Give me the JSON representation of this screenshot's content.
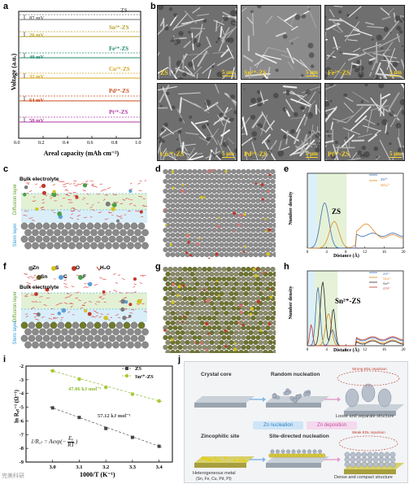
{
  "panel_labels": [
    "a",
    "b",
    "c",
    "d",
    "e",
    "f",
    "g",
    "h",
    "i",
    "j"
  ],
  "panel_a": {
    "ylabel": "Voltage (a.u.)",
    "xlabel": "Areal capacity (mAh cm⁻²)",
    "xticks": [
      "0.0",
      "0.2",
      "0.4",
      "0.6",
      "0.8",
      "1.0"
    ],
    "series": [
      {
        "name": "ZS",
        "mv": "87 mV",
        "color": "#6d6d6d"
      },
      {
        "name": "Sn²⁺-ZS",
        "mv": "26 mV",
        "color": "#b5a12a"
      },
      {
        "name": "Fe²⁺-ZS",
        "mv": "40 mV",
        "color": "#1f8a6d"
      },
      {
        "name": "Cu²⁺-ZS",
        "mv": "32 mV",
        "color": "#d4a520"
      },
      {
        "name": "Pd²⁺-ZS",
        "mv": "64 mV",
        "color": "#c94b1a"
      },
      {
        "name": "Pt²⁺-ZS",
        "mv": "58 mV",
        "color": "#b23aa3"
      }
    ]
  },
  "panel_b": {
    "images": [
      {
        "label": "ZS",
        "scale": "5 μm"
      },
      {
        "label": "Sn²⁺-ZS",
        "scale": "5 μm"
      },
      {
        "label": "Fe²⁺-ZS",
        "scale": "5 μm"
      },
      {
        "label": "Cu²⁺-ZS",
        "scale": "5 μm"
      },
      {
        "label": "Pd²⁺-ZS",
        "scale": "5 μm"
      },
      {
        "label": "Pt²⁺-ZS",
        "scale": "5 μm"
      }
    ]
  },
  "panel_c": {
    "bulk": "Bulk electrolyte",
    "diffusion": "Diffusion layer",
    "stern": "Stern layer"
  },
  "panel_e": {
    "title": "ZS",
    "ylabel": "Number density",
    "xlabel": "Distance (Å)",
    "xticks": [
      "0",
      "4",
      "8",
      "12",
      "16",
      "20"
    ],
    "yticks": [
      "0",
      "2",
      "4",
      "6",
      "8",
      "10",
      "12",
      "14"
    ],
    "legend": [
      "Zn²⁺",
      "SO₄²⁻"
    ]
  },
  "panel_f": {
    "legend": [
      "Zn",
      "S",
      "O",
      "H₂O",
      "Sn",
      "C",
      "F"
    ],
    "bulk": "Bulk electrolyte",
    "diffusion": "Diffusion layer",
    "stern": "Stern layer"
  },
  "panel_h": {
    "title": "Sn²⁺-ZS",
    "ylabel": "Number density",
    "xlabel": "Distance (Å)",
    "xticks": [
      "0",
      "4",
      "8",
      "12",
      "16",
      "20"
    ],
    "legend": [
      "Zn²⁺",
      "SO₄²⁻",
      "Sn²⁺",
      "OTF⁻"
    ]
  },
  "panel_i": {
    "ylabel": "ln R꜀ₜ⁻¹ (Ω⁻¹)",
    "xlabel": "1000/T (K⁻¹)",
    "xticks": [
      "3.0",
      "3.1",
      "3.2",
      "3.3",
      "3.4"
    ],
    "yticks": [
      "-9",
      "-8",
      "-7",
      "-6",
      "-5",
      "-4",
      "-3",
      "-2"
    ],
    "legend": [
      "ZS",
      "Sn²⁺-ZS"
    ],
    "ea_sn": "47.06 kJ mol⁻¹",
    "ea_zs": "57.12 kJ mol⁻¹",
    "equation_left": "1/R꜀ₜ = Aexp(−",
    "equation_num": "Eₐ",
    "equation_den": "RT",
    "equation_right": ")"
  },
  "panel_j": {
    "crystal_core": "Crystal core",
    "random_nucleation": "Random nucleation",
    "strong_edl": "Strong EDL repulsion",
    "loose": "Loose and separate structure",
    "zn_nucleation": "Zn nucleation",
    "zn_deposition": "Zn deposition",
    "zincophilic": "Zincophilic site",
    "site_directed": "Site-directed nucleation",
    "weak_edl": "Weak EDL repulsion",
    "hetero": "Heterogeneous metal",
    "hetero_sub": "(Sn, Fe, Cu, Pd, Pt)",
    "dense": "Dense and compact structure"
  },
  "watermark": "完美科研"
}
